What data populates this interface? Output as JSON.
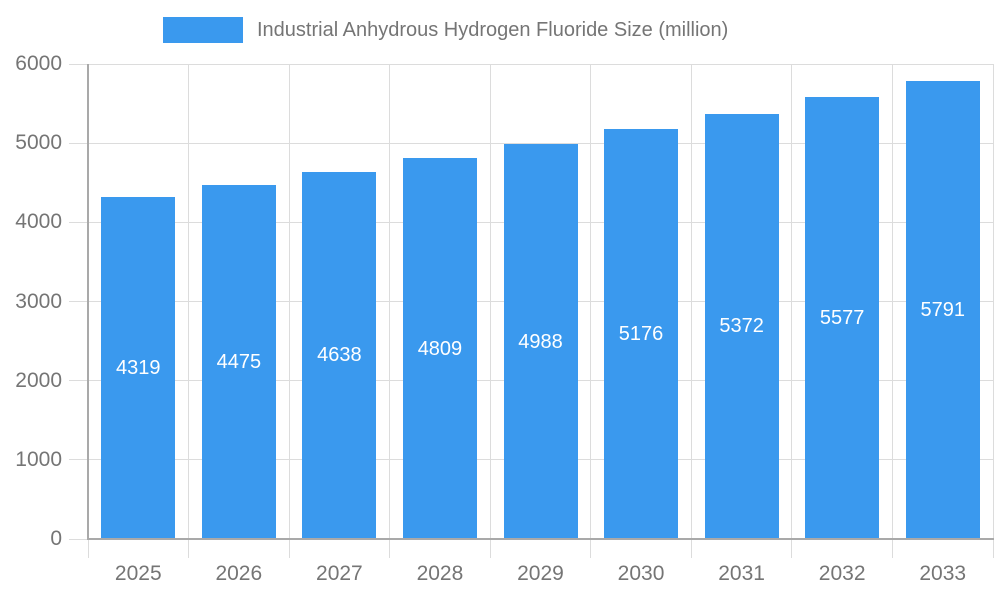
{
  "chart_data": {
    "type": "bar",
    "title": "",
    "legend": "Industrial Anhydrous Hydrogen Fluoride Size (million)",
    "legend_position": "top",
    "categories": [
      "2025",
      "2026",
      "2027",
      "2028",
      "2029",
      "2030",
      "2031",
      "2032",
      "2033"
    ],
    "values": [
      4319,
      4475,
      4638,
      4809,
      4988,
      5176,
      5372,
      5577,
      5791
    ],
    "value_labels_shown": true,
    "xlabel": "",
    "ylabel": "",
    "ylim": [
      0,
      6000
    ],
    "yticks": [
      0,
      1000,
      2000,
      3000,
      4000,
      5000,
      6000
    ],
    "grid": true
  },
  "colors": {
    "bar": "#3a99ee",
    "grid": "#dcdcdc",
    "axis": "#a9a9a9",
    "tick_text": "#757575",
    "legend_text": "#757575",
    "value_label": "#ffffff",
    "background": "#ffffff"
  }
}
